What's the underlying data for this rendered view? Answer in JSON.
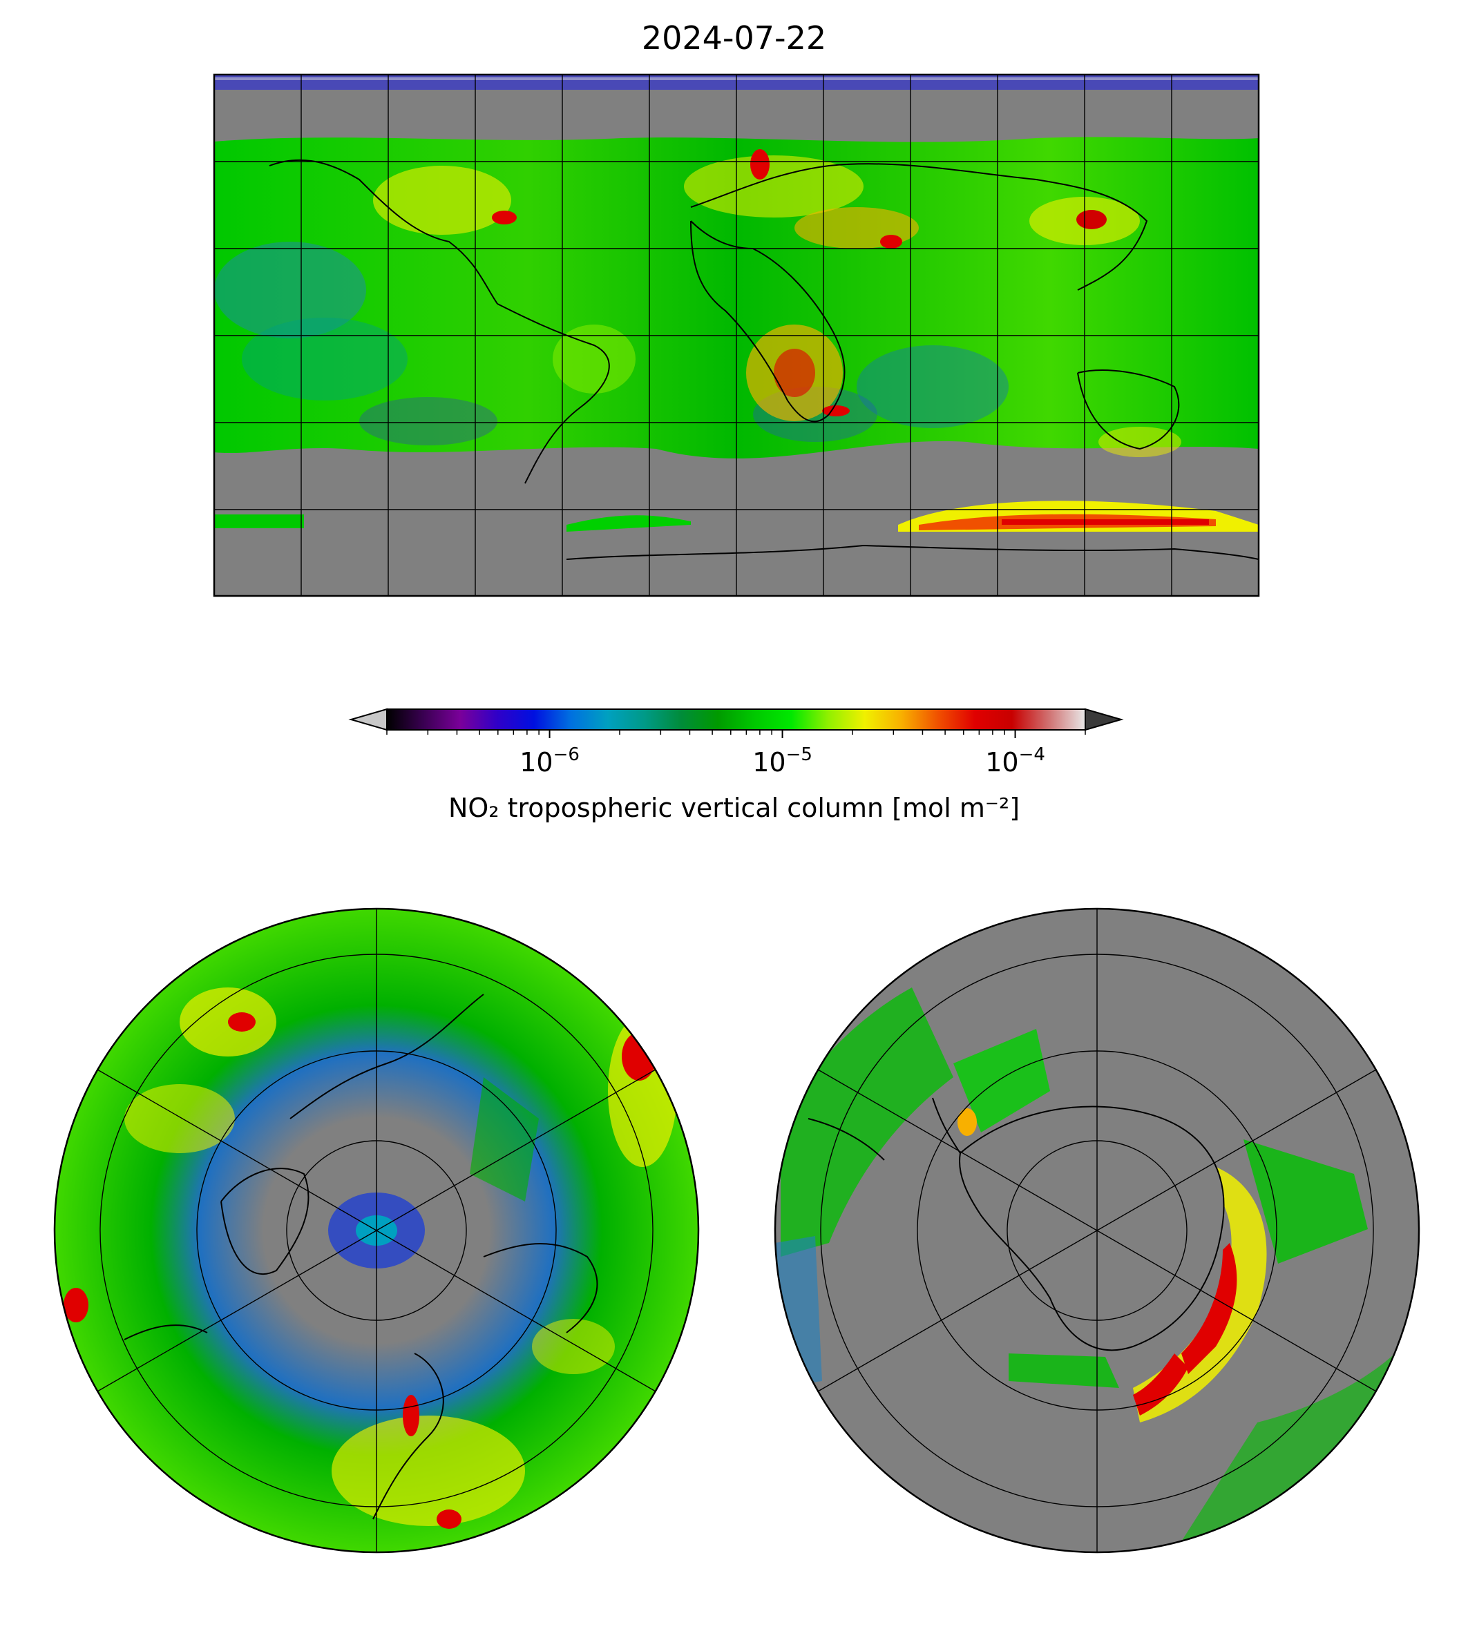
{
  "figure": {
    "title": "2024-07-22"
  },
  "colorbar": {
    "label": "NO₂ tropospheric vertical column [mol m⁻²]",
    "scale": "log",
    "range": [
      2e-07,
      0.0002
    ],
    "extend": "both",
    "ticks": [
      {
        "value": 1e-06,
        "base": "10",
        "exp": "−6"
      },
      {
        "value": 1e-05,
        "base": "10",
        "exp": "−5"
      },
      {
        "value": 0.0001,
        "base": "10",
        "exp": "−4"
      }
    ],
    "under_color": "#c8c8c8",
    "over_color": "#3a3a3a",
    "colors": [
      "#000000",
      "#3a0052",
      "#7a009a",
      "#3000c8",
      "#0010e0",
      "#0070e0",
      "#00a0c0",
      "#009a88",
      "#008c3a",
      "#009a00",
      "#00c800",
      "#00e800",
      "#90f000",
      "#f0f000",
      "#f8b000",
      "#f05000",
      "#e00000",
      "#c80000",
      "#d07070",
      "#e8e8e8"
    ]
  },
  "maps": {
    "no_data_color": "#808080",
    "global": {
      "projection": "plate-carree"
    },
    "north_polar": {
      "projection": "north-polar-stereographic"
    },
    "south_polar": {
      "projection": "south-polar-stereographic"
    }
  }
}
